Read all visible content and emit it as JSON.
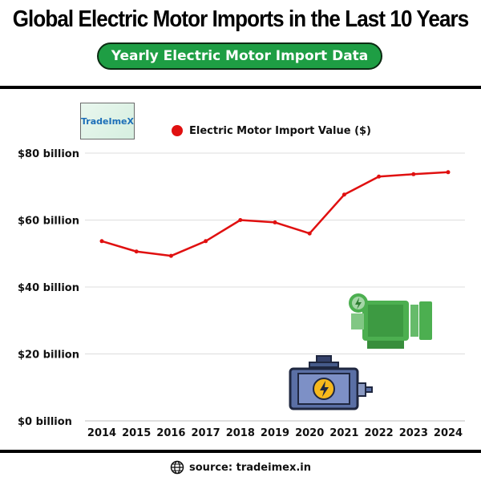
{
  "header": {
    "title": "Global Electric Motor Imports in the Last 10 Years",
    "subtitle": "Yearly Electric Motor Import Data"
  },
  "logo": {
    "text": "TradeImeX"
  },
  "footer": {
    "source": "source: tradeimex.in",
    "icon": "globe-icon"
  },
  "colors": {
    "line": "#e01010",
    "accent": "#1e9e44",
    "grid": "#dddddd"
  },
  "illustrations": [
    "green-motor-icon",
    "blue-motor-icon"
  ],
  "chart_data": {
    "type": "line",
    "categories": [
      "2014",
      "2015",
      "2016",
      "2017",
      "2018",
      "2019",
      "2020",
      "2021",
      "2022",
      "2023",
      "2024"
    ],
    "series": [
      {
        "name": "Electric Motor Import Value ($)",
        "values": [
          53.7,
          50.6,
          49.3,
          53.7,
          60.0,
          59.3,
          56.0,
          67.6,
          73.0,
          73.7,
          74.3
        ]
      }
    ],
    "y_ticks": [
      0,
      20,
      40,
      60,
      80
    ],
    "y_tick_labels": [
      "$0 billion",
      "$20 billion",
      "$40 billion",
      "$60 billion",
      "$80 billion"
    ],
    "ylim": [
      0,
      80
    ],
    "grid": true,
    "legend_position": "top-center"
  }
}
